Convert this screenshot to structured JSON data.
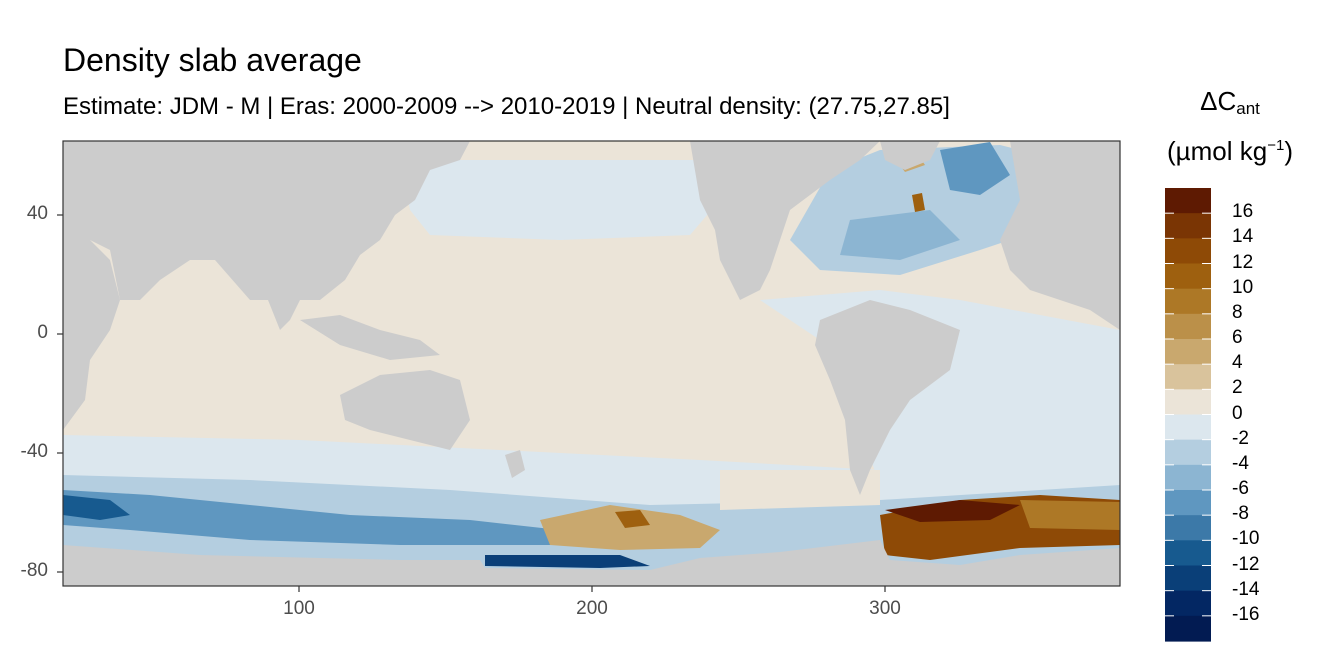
{
  "title": "Density slab average",
  "subtitle": "Estimate: JDM - M | Eras: 2000-2009 --> 2010-2019 | Neutral density: (27.75,27.85]",
  "chart_data": {
    "type": "heatmap",
    "title": "Density slab average",
    "subtitle": "Estimate: JDM - M | Eras: 2000-2009 --> 2010-2019 | Neutral density: (27.75,27.85]",
    "xlabel": "",
    "ylabel": "",
    "x_ticks": [
      "100",
      "200",
      "300"
    ],
    "y_ticks": [
      "40",
      "0",
      "-40",
      "-80"
    ],
    "xlim": [
      20,
      380
    ],
    "ylim": [
      -85,
      65
    ],
    "legend": {
      "title_main": "ΔC",
      "title_sub": "ant",
      "units_prefix": "(µmol kg",
      "units_sup": "−1",
      "units_suffix": ")",
      "labels": [
        "16",
        "14",
        "12",
        "10",
        "8",
        "6",
        "4",
        "2",
        "0",
        "-2",
        "-4",
        "-6",
        "-8",
        "-10",
        "-12",
        "-14",
        "-16"
      ],
      "colors": [
        "#5e1a02",
        "#7a3504",
        "#8e4a06",
        "#9e600f",
        "#ad7826",
        "#bb9049",
        "#c9a86e",
        "#d9c39c",
        "#ebe4d8",
        "#dce7ee",
        "#b4cee0",
        "#8cb5d2",
        "#5f97c0",
        "#3c79a8",
        "#175a8f",
        "#0a3f78",
        "#032763",
        "#021b52"
      ]
    },
    "land_color": "#cccccc",
    "grid": false
  }
}
